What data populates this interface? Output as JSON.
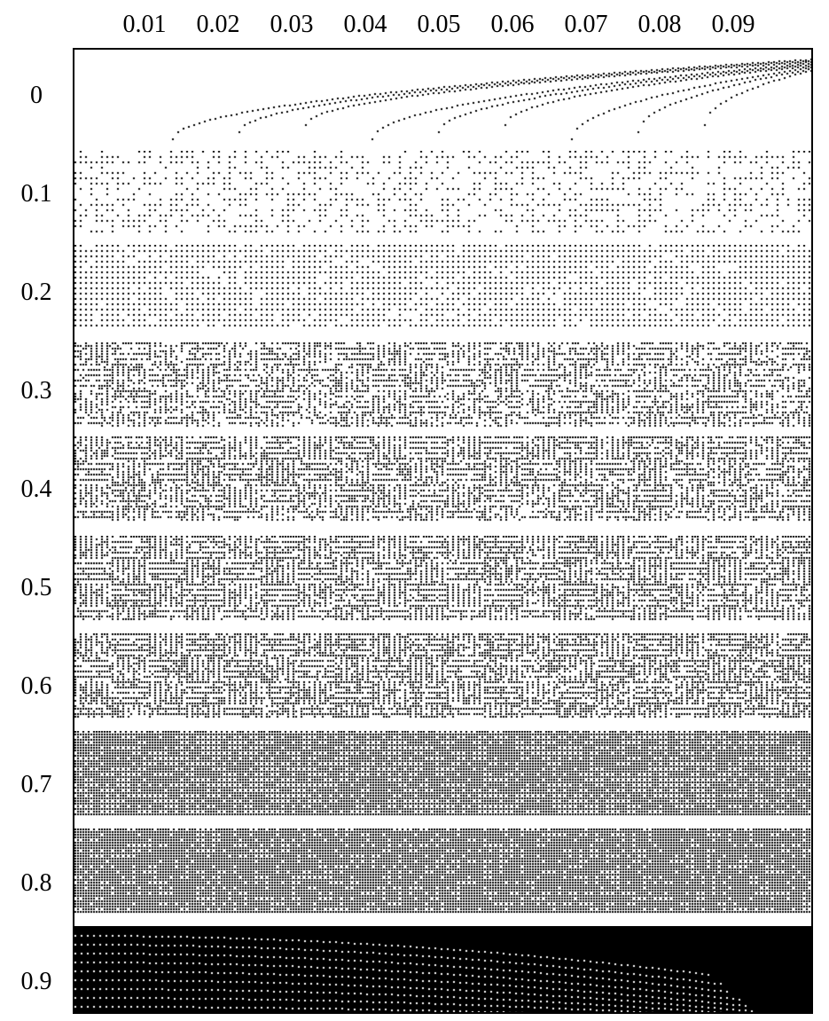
{
  "figure": {
    "column_labels": [
      "0.01",
      "0.02",
      "0.03",
      "0.04",
      "0.05",
      "0.06",
      "0.07",
      "0.08",
      "0.09"
    ],
    "row_labels": [
      "0",
      "0.1",
      "0.2",
      "0.3",
      "0.4",
      "0.5",
      "0.6",
      "0.7",
      "0.8",
      "0.9"
    ],
    "colors": {
      "ink": "#000000",
      "paper": "#ffffff"
    },
    "bands": [
      {
        "row": "0",
        "fill_density": 0.03
      },
      {
        "row": "0.1",
        "fill_density": 0.12
      },
      {
        "row": "0.2",
        "fill_density": 0.22
      },
      {
        "row": "0.3",
        "fill_density": 0.33
      },
      {
        "row": "0.4",
        "fill_density": 0.44
      },
      {
        "row": "0.5",
        "fill_density": 0.52
      },
      {
        "row": "0.6",
        "fill_density": 0.62
      },
      {
        "row": "0.7",
        "fill_density": 0.72
      },
      {
        "row": "0.8",
        "fill_density": 0.83
      },
      {
        "row": "0.9",
        "fill_density": 0.95
      }
    ]
  }
}
